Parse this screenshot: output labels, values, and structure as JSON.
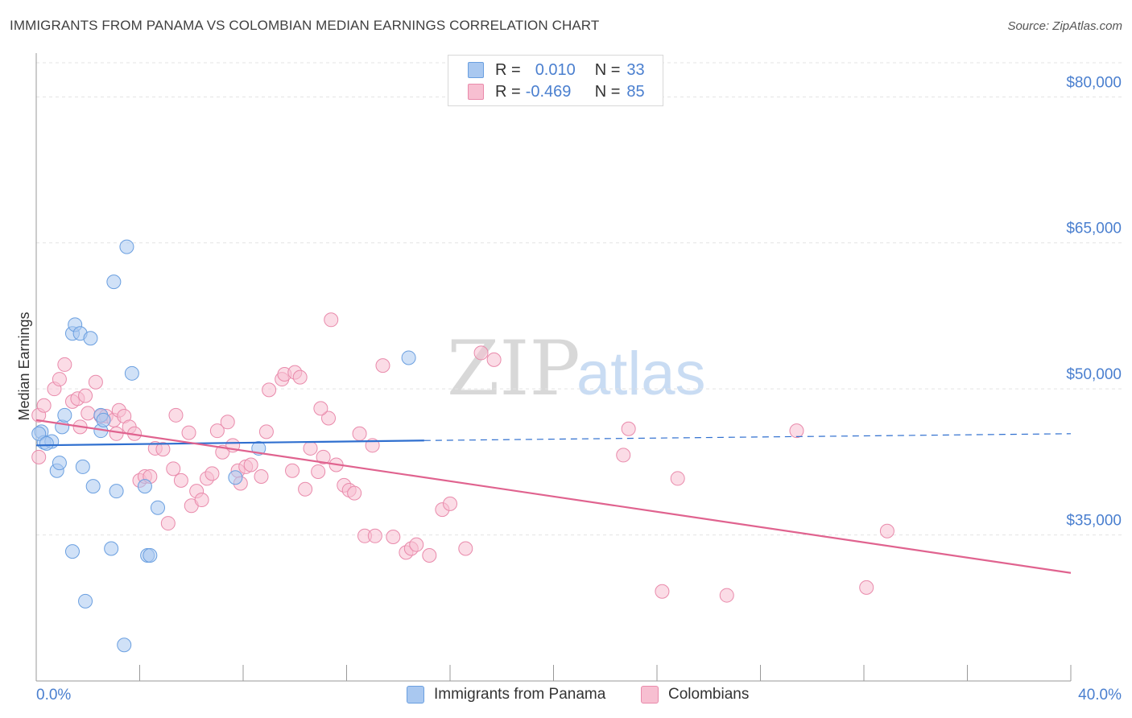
{
  "title": "IMMIGRANTS FROM PANAMA VS COLOMBIAN MEDIAN EARNINGS CORRELATION CHART",
  "source": "Source: ZipAtlas.com",
  "watermark": {
    "zip": "ZIP",
    "atlas": "atlas"
  },
  "legend": {
    "r_label": "R =",
    "n_label": "N =",
    "series1": {
      "r": "0.010",
      "n": "33"
    },
    "series2": {
      "r": "-0.469",
      "n": "85"
    }
  },
  "colors": {
    "blue_fill": "#a9c8f0",
    "blue_stroke": "#6a9fe0",
    "blue_line": "#2f6fcf",
    "pink_fill": "#f7bfd1",
    "pink_stroke": "#e98aab",
    "pink_line": "#e0638f",
    "axis_text": "#4a7fcf"
  },
  "chart_data": {
    "type": "scatter",
    "title": "IMMIGRANTS FROM PANAMA VS COLOMBIAN MEDIAN EARNINGS CORRELATION CHART",
    "xlabel": "",
    "ylabel": "Median Earnings",
    "xlim": [
      0,
      40
    ],
    "ylim": [
      20000,
      83500
    ],
    "x_tick_labels": [
      "0.0%",
      "40.0%"
    ],
    "y_ticks": [
      35000,
      50000,
      65000,
      80000
    ],
    "y_tick_labels": [
      "$35,000",
      "$50,000",
      "$65,000",
      "$80,000"
    ],
    "legend_position": "bottom",
    "series": [
      {
        "name": "Immigrants from Panama",
        "color": "blue",
        "r": 0.01,
        "n": 33,
        "trend": {
          "x": [
            0.0,
            15.0
          ],
          "y": [
            44200,
            44700
          ],
          "dashed_to": [
            40.0,
            45400
          ]
        },
        "points": [
          [
            0.2,
            45600
          ],
          [
            0.3,
            44500
          ],
          [
            0.6,
            44600
          ],
          [
            0.8,
            41600
          ],
          [
            0.9,
            42400
          ],
          [
            1.0,
            46100
          ],
          [
            1.1,
            47300
          ],
          [
            1.4,
            33300
          ],
          [
            1.4,
            55700
          ],
          [
            1.5,
            56600
          ],
          [
            1.7,
            55700
          ],
          [
            1.8,
            42000
          ],
          [
            1.9,
            28200
          ],
          [
            2.1,
            55200
          ],
          [
            2.2,
            40000
          ],
          [
            2.5,
            47300
          ],
          [
            2.5,
            45700
          ],
          [
            2.6,
            46800
          ],
          [
            2.9,
            33600
          ],
          [
            3.0,
            61000
          ],
          [
            3.1,
            39500
          ],
          [
            3.4,
            23700
          ],
          [
            3.5,
            64600
          ],
          [
            3.7,
            51600
          ],
          [
            4.2,
            40000
          ],
          [
            4.3,
            32900
          ],
          [
            4.4,
            32900
          ],
          [
            4.7,
            37800
          ],
          [
            7.7,
            40900
          ],
          [
            8.6,
            43900
          ],
          [
            14.4,
            53200
          ],
          [
            0.1,
            45400
          ],
          [
            0.4,
            44400
          ]
        ]
      },
      {
        "name": "Colombians",
        "color": "pink",
        "r": -0.469,
        "n": 85,
        "trend": {
          "x": [
            0.0,
            40.0
          ],
          "y": [
            46800,
            31100
          ]
        },
        "points": [
          [
            0.1,
            43000
          ],
          [
            0.1,
            47300
          ],
          [
            0.3,
            48300
          ],
          [
            0.7,
            50000
          ],
          [
            0.9,
            51000
          ],
          [
            1.1,
            52500
          ],
          [
            1.4,
            48700
          ],
          [
            1.6,
            49000
          ],
          [
            1.7,
            46100
          ],
          [
            1.9,
            49300
          ],
          [
            2.0,
            47500
          ],
          [
            2.3,
            50700
          ],
          [
            2.5,
            47200
          ],
          [
            2.7,
            47200
          ],
          [
            3.0,
            46800
          ],
          [
            3.1,
            45400
          ],
          [
            3.2,
            47800
          ],
          [
            3.4,
            47200
          ],
          [
            3.6,
            46100
          ],
          [
            3.8,
            45400
          ],
          [
            4.0,
            40600
          ],
          [
            4.2,
            41000
          ],
          [
            4.4,
            41000
          ],
          [
            4.6,
            43900
          ],
          [
            4.9,
            43800
          ],
          [
            5.1,
            36200
          ],
          [
            5.3,
            41800
          ],
          [
            5.4,
            47300
          ],
          [
            5.6,
            40600
          ],
          [
            5.9,
            45500
          ],
          [
            6.0,
            38000
          ],
          [
            6.2,
            39500
          ],
          [
            6.4,
            38600
          ],
          [
            6.6,
            40800
          ],
          [
            6.8,
            41300
          ],
          [
            7.0,
            45700
          ],
          [
            7.2,
            43500
          ],
          [
            7.4,
            46600
          ],
          [
            7.6,
            44200
          ],
          [
            7.8,
            41600
          ],
          [
            7.9,
            40300
          ],
          [
            8.1,
            42000
          ],
          [
            8.3,
            42200
          ],
          [
            8.7,
            41000
          ],
          [
            8.9,
            45600
          ],
          [
            9.0,
            49900
          ],
          [
            9.5,
            51000
          ],
          [
            9.6,
            51500
          ],
          [
            9.9,
            41600
          ],
          [
            10.0,
            51700
          ],
          [
            10.2,
            51200
          ],
          [
            10.4,
            39700
          ],
          [
            10.6,
            43900
          ],
          [
            10.9,
            41500
          ],
          [
            11.1,
            43000
          ],
          [
            11.3,
            47000
          ],
          [
            11.4,
            57100
          ],
          [
            11.6,
            42200
          ],
          [
            11.9,
            40100
          ],
          [
            12.1,
            39600
          ],
          [
            12.3,
            39300
          ],
          [
            12.5,
            45400
          ],
          [
            12.7,
            34900
          ],
          [
            13.0,
            44200
          ],
          [
            13.1,
            34900
          ],
          [
            13.4,
            52400
          ],
          [
            13.8,
            34800
          ],
          [
            14.3,
            33200
          ],
          [
            14.5,
            33600
          ],
          [
            14.7,
            34000
          ],
          [
            15.2,
            32900
          ],
          [
            15.7,
            37600
          ],
          [
            16.0,
            38200
          ],
          [
            16.6,
            33600
          ],
          [
            17.2,
            53700
          ],
          [
            17.7,
            53000
          ],
          [
            22.7,
            43200
          ],
          [
            22.9,
            45900
          ],
          [
            24.2,
            29200
          ],
          [
            24.8,
            40800
          ],
          [
            26.7,
            28800
          ],
          [
            29.4,
            45700
          ],
          [
            32.1,
            29600
          ],
          [
            32.9,
            35400
          ],
          [
            11.0,
            48000
          ]
        ]
      }
    ]
  }
}
